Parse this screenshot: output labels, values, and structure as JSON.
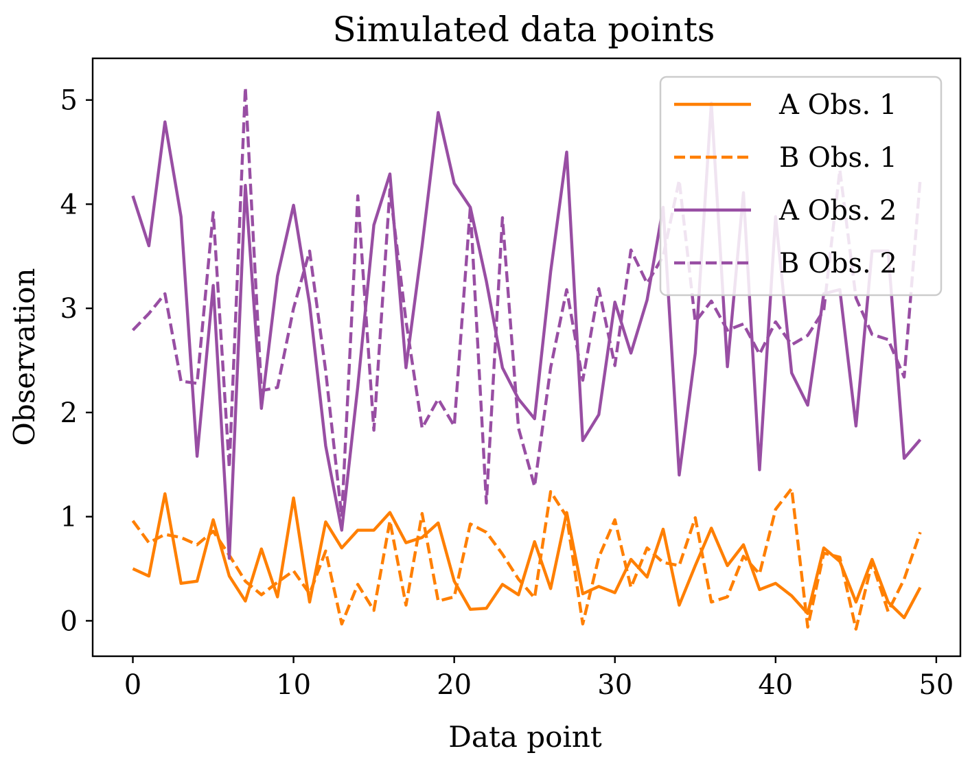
{
  "chart_data": {
    "type": "line",
    "title": "Simulated data points",
    "xlabel": "Data point",
    "ylabel": "Observation",
    "xlim": [
      -2.5,
      51.5
    ],
    "ylim": [
      -0.34,
      5.4
    ],
    "xticks": [
      0,
      10,
      20,
      30,
      40,
      50
    ],
    "yticks": [
      0,
      1,
      2,
      3,
      4,
      5
    ],
    "grid": false,
    "legend_position": "top-right",
    "x": [
      0,
      1,
      2,
      3,
      4,
      5,
      6,
      7,
      8,
      9,
      10,
      11,
      12,
      13,
      14,
      15,
      16,
      17,
      18,
      19,
      20,
      21,
      22,
      23,
      24,
      25,
      26,
      27,
      28,
      29,
      30,
      31,
      32,
      33,
      34,
      35,
      36,
      37,
      38,
      39,
      40,
      41,
      42,
      43,
      44,
      45,
      46,
      47,
      48,
      49
    ],
    "series": [
      {
        "name": "A Obs. 1",
        "color": "#ff7f00",
        "dash": "solid",
        "values": [
          0.5,
          0.43,
          1.22,
          0.36,
          0.38,
          0.97,
          0.43,
          0.19,
          0.69,
          0.23,
          1.18,
          0.18,
          0.95,
          0.7,
          0.87,
          0.87,
          1.04,
          0.75,
          0.8,
          0.94,
          0.38,
          0.11,
          0.12,
          0.35,
          0.25,
          0.76,
          0.31,
          1.04,
          0.26,
          0.33,
          0.27,
          0.59,
          0.42,
          0.88,
          0.15,
          0.53,
          0.89,
          0.53,
          0.73,
          0.3,
          0.36,
          0.24,
          0.07,
          0.7,
          0.57,
          0.18,
          0.59,
          0.18,
          0.03,
          0.32
        ]
      },
      {
        "name": "B Obs. 1",
        "color": "#ff7f00",
        "dash": "dashed",
        "values": [
          0.96,
          0.75,
          0.83,
          0.8,
          0.73,
          0.86,
          0.63,
          0.38,
          0.25,
          0.37,
          0.48,
          0.26,
          0.67,
          -0.03,
          0.35,
          0.1,
          0.96,
          0.15,
          1.03,
          0.19,
          0.23,
          0.93,
          0.85,
          0.64,
          0.4,
          0.22,
          1.24,
          1.0,
          -0.03,
          0.61,
          0.97,
          0.32,
          0.7,
          0.56,
          0.53,
          0.99,
          0.18,
          0.23,
          0.62,
          0.45,
          1.07,
          1.27,
          -0.06,
          0.65,
          0.61,
          -0.08,
          0.56,
          0.09,
          0.4,
          0.85
        ]
      },
      {
        "name": "A Obs. 2",
        "color": "#984ea3",
        "dash": "solid",
        "values": [
          4.08,
          3.6,
          4.79,
          3.88,
          1.58,
          3.22,
          0.6,
          4.18,
          2.04,
          3.31,
          3.99,
          3.04,
          1.68,
          0.87,
          2.25,
          3.8,
          4.29,
          2.43,
          3.6,
          4.88,
          4.2,
          3.97,
          3.26,
          2.43,
          2.13,
          1.94,
          3.35,
          4.5,
          1.73,
          1.98,
          3.06,
          2.57,
          3.08,
          3.97,
          1.4,
          2.57,
          4.97,
          2.44,
          4.11,
          1.45,
          3.88,
          2.38,
          2.07,
          3.14,
          3.18,
          1.87,
          3.55,
          3.55,
          1.56,
          1.74
        ]
      },
      {
        "name": "B Obs. 2",
        "color": "#984ea3",
        "dash": "dashed",
        "values": [
          2.79,
          2.95,
          3.14,
          2.3,
          2.28,
          3.92,
          1.47,
          5.12,
          2.21,
          2.24,
          3.0,
          3.55,
          2.4,
          1.0,
          4.08,
          1.83,
          4.14,
          2.88,
          1.85,
          2.13,
          1.87,
          3.97,
          1.13,
          3.87,
          1.85,
          1.29,
          2.43,
          3.18,
          2.31,
          3.19,
          2.45,
          3.56,
          3.24,
          3.5,
          4.23,
          2.87,
          3.07,
          2.79,
          2.85,
          2.56,
          2.87,
          2.65,
          2.74,
          2.98,
          4.33,
          3.1,
          2.75,
          2.7,
          2.34,
          4.24
        ]
      }
    ]
  }
}
